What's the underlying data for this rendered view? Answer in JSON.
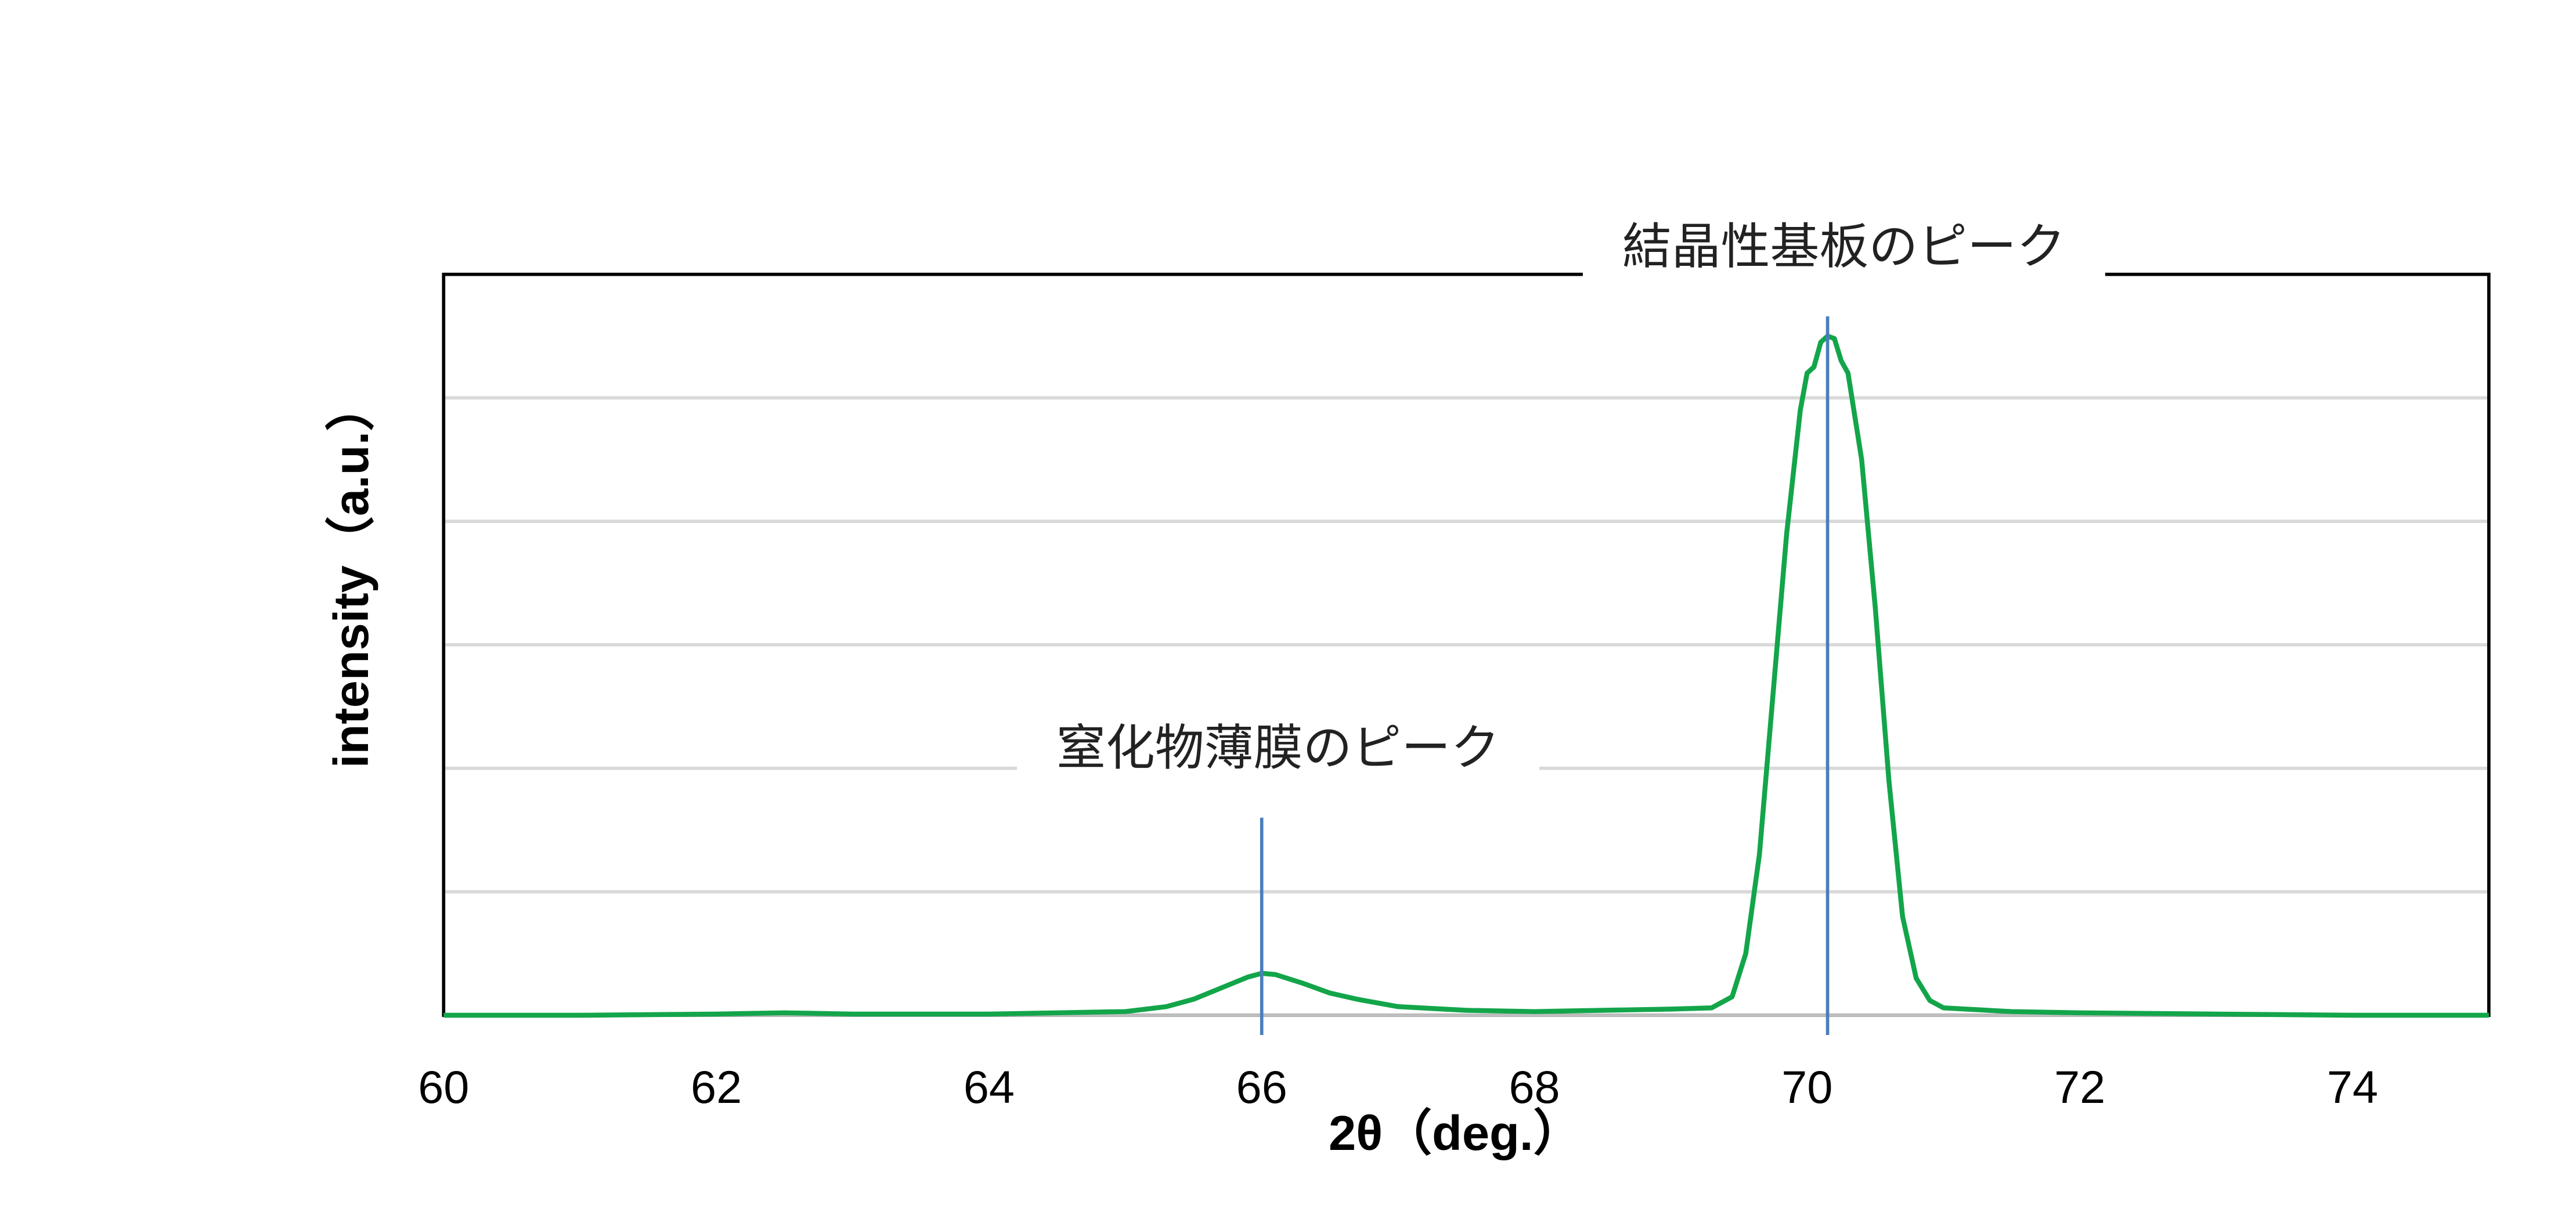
{
  "chart_data": {
    "type": "line",
    "xlabel": "2θ（deg.）",
    "ylabel": "intensity（a.u.）",
    "xlim": [
      60,
      75
    ],
    "xticks": [
      60,
      62,
      64,
      66,
      68,
      70,
      72,
      74
    ],
    "ylim": [
      0,
      6
    ],
    "yticks": [
      1,
      2,
      3,
      4,
      5
    ],
    "ytick_labels": false,
    "grid": true,
    "x": [
      60,
      61,
      62,
      62.5,
      63,
      64,
      64.5,
      65,
      65.3,
      65.5,
      65.7,
      65.9,
      66.0,
      66.1,
      66.3,
      66.5,
      66.7,
      67.0,
      67.5,
      68,
      68.5,
      69,
      69.3,
      69.45,
      69.55,
      69.65,
      69.75,
      69.85,
      69.95,
      70.0,
      70.05,
      70.1,
      70.15,
      70.2,
      70.25,
      70.3,
      70.4,
      70.5,
      70.6,
      70.7,
      70.8,
      70.9,
      71.0,
      71.5,
      72,
      73,
      74,
      75
    ],
    "series": [
      {
        "color": "#13a54a",
        "values": [
          0.0,
          0.0,
          0.01,
          0.02,
          0.01,
          0.01,
          0.02,
          0.03,
          0.07,
          0.13,
          0.22,
          0.31,
          0.34,
          0.33,
          0.26,
          0.18,
          0.13,
          0.07,
          0.04,
          0.03,
          0.04,
          0.05,
          0.06,
          0.15,
          0.5,
          1.3,
          2.6,
          3.9,
          4.9,
          5.2,
          5.25,
          5.45,
          5.5,
          5.48,
          5.3,
          5.2,
          4.5,
          3.3,
          1.9,
          0.8,
          0.3,
          0.12,
          0.06,
          0.03,
          0.02,
          0.01,
          0.0,
          0.0
        ]
      }
    ],
    "annotations": [
      {
        "text": "窒化物薄膜のピーク",
        "x": 66.0,
        "y": 1.6
      },
      {
        "text": "結晶性基板のピーク",
        "x": 70.15,
        "y": 5.66
      }
    ],
    "annotation_color": "#4a7ebb"
  }
}
